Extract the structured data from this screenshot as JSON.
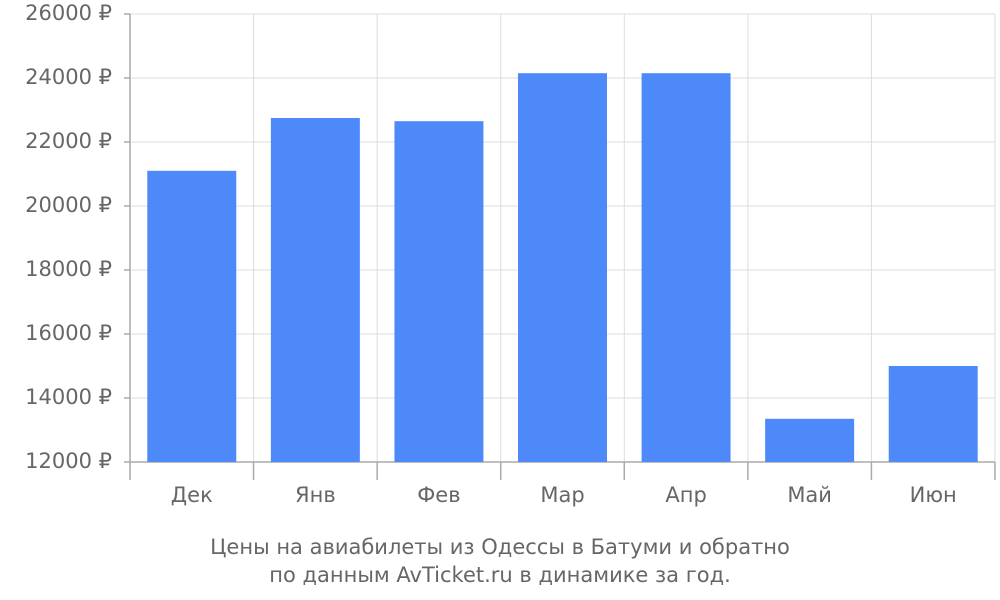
{
  "chart_data": {
    "type": "bar",
    "title": "Цены на авиабилеты из Одессы в Батуми и обратно",
    "subtitle": "по данным AvTicket.ru в динамике за год.",
    "categories": [
      "Дек",
      "Янв",
      "Фев",
      "Мар",
      "Апр",
      "Май",
      "Июн"
    ],
    "values": [
      21100,
      22750,
      22650,
      24150,
      24150,
      13350,
      15000
    ],
    "color": "#4e89fa",
    "ylim": [
      12000,
      26000
    ],
    "yticks": [
      {
        "value": 12000,
        "label": "12000 ₽"
      },
      {
        "value": 14000,
        "label": "14000 ₽"
      },
      {
        "value": 16000,
        "label": "16000 ₽"
      },
      {
        "value": 18000,
        "label": "18000 ₽"
      },
      {
        "value": 20000,
        "label": "20000 ₽"
      },
      {
        "value": 22000,
        "label": "22000 ₽"
      },
      {
        "value": 24000,
        "label": "24000 ₽"
      },
      {
        "value": 26000,
        "label": "26000 ₽"
      }
    ],
    "grid": true
  }
}
